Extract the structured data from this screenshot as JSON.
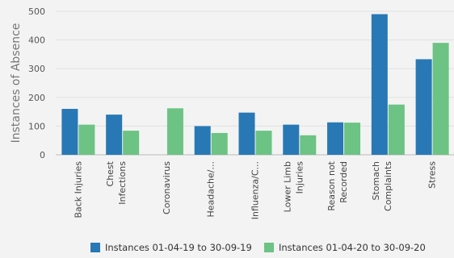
{
  "chart_data": {
    "type": "bar",
    "ylabel": "Instances of Absence",
    "xlabel": "",
    "ylim": [
      0,
      500
    ],
    "yticks": [
      0,
      100,
      200,
      300,
      400,
      500
    ],
    "grid": true,
    "legend_position": "bottom",
    "categories": [
      [
        "Back Injuries"
      ],
      [
        "Chest",
        "Infections"
      ],
      [
        "Coronavirus"
      ],
      [
        "Headache/..."
      ],
      [
        "Influenza/C..."
      ],
      [
        "Lower Limb",
        "Injuries"
      ],
      [
        "Reason not",
        "Recorded"
      ],
      [
        "Stomach",
        "Complaints"
      ],
      [
        "Stress"
      ]
    ],
    "series": [
      {
        "name": "Instances 01-04-19 to 30-09-19",
        "color": "#2878b5",
        "values": [
          160,
          140,
          0,
          100,
          147,
          105,
          113,
          490,
          333
        ]
      },
      {
        "name": "Instances 01-04-20 to 30-09-20",
        "color": "#6cc384",
        "values": [
          105,
          84,
          162,
          76,
          84,
          68,
          112,
          175,
          390
        ]
      }
    ]
  }
}
